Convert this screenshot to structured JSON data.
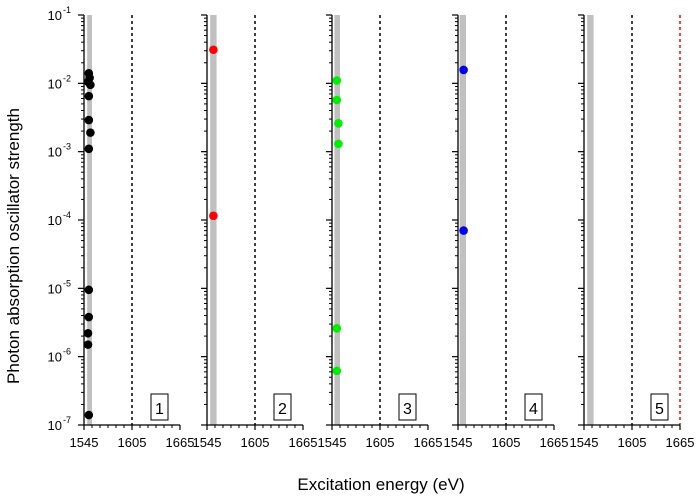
{
  "chart_data": {
    "type": "scatter",
    "xlabel": "Excitation energy (eV)",
    "ylabel": "Photon absorption oscillator strength",
    "y_scale": "log",
    "ylim": [
      1e-07,
      0.1
    ],
    "xlim": [
      1545,
      1665
    ],
    "x_ticks": [
      "1545",
      "1605",
      "1665"
    ],
    "y_ticks": [
      {
        "base": "10",
        "exp": "-1",
        "value": 0.1
      },
      {
        "base": "10",
        "exp": "-2",
        "value": 0.01
      },
      {
        "base": "10",
        "exp": "-3",
        "value": 0.001
      },
      {
        "base": "10",
        "exp": "-4",
        "value": 0.0001
      },
      {
        "base": "10",
        "exp": "-5",
        "value": 1e-05
      },
      {
        "base": "10",
        "exp": "-6",
        "value": 1e-06
      },
      {
        "base": "10",
        "exp": "-7",
        "value": 1e-07
      }
    ],
    "panels": [
      {
        "label": "1",
        "color": "#000000",
        "band": [
          1549,
          1555
        ],
        "dashed_lines": [
          {
            "x": 1605,
            "color": "#000000"
          }
        ],
        "points": [
          {
            "x": 1551,
            "y": 0.014
          },
          {
            "x": 1552,
            "y": 0.012
          },
          {
            "x": 1550,
            "y": 0.0105
          },
          {
            "x": 1553,
            "y": 0.0095
          },
          {
            "x": 1551,
            "y": 0.0065
          },
          {
            "x": 1551,
            "y": 0.0029
          },
          {
            "x": 1553,
            "y": 0.0019
          },
          {
            "x": 1551,
            "y": 0.0011
          },
          {
            "x": 1551,
            "y": 9.5e-06
          },
          {
            "x": 1551,
            "y": 3.8e-06
          },
          {
            "x": 1550,
            "y": 2.2e-06
          },
          {
            "x": 1550,
            "y": 1.5e-06
          },
          {
            "x": 1551,
            "y": 1.4e-07
          }
        ]
      },
      {
        "label": "2",
        "color": "#ff0000",
        "band": [
          1549,
          1557
        ],
        "dashed_lines": [
          {
            "x": 1605,
            "color": "#000000"
          }
        ],
        "points": [
          {
            "x": 1553,
            "y": 0.031
          },
          {
            "x": 1553,
            "y": 0.000115
          }
        ]
      },
      {
        "label": "3",
        "color": "#00ee00",
        "band": [
          1548,
          1555
        ],
        "dashed_lines": [
          {
            "x": 1605,
            "color": "#000000"
          }
        ],
        "points": [
          {
            "x": 1551,
            "y": 0.011
          },
          {
            "x": 1551,
            "y": 0.0057
          },
          {
            "x": 1553,
            "y": 0.0026
          },
          {
            "x": 1553,
            "y": 0.0013
          },
          {
            "x": 1551,
            "y": 2.6e-06
          },
          {
            "x": 1551,
            "y": 6.2e-07
          }
        ]
      },
      {
        "label": "4",
        "color": "#0000ee",
        "band": [
          1547,
          1555
        ],
        "dashed_lines": [
          {
            "x": 1605,
            "color": "#000000"
          }
        ],
        "points": [
          {
            "x": 1552,
            "y": 0.0157
          },
          {
            "x": 1552,
            "y": 7e-05
          }
        ]
      },
      {
        "label": "5",
        "color": "#000000",
        "band": [
          1549,
          1557
        ],
        "dashed_lines": [
          {
            "x": 1605,
            "color": "#000000"
          },
          {
            "x": 1665,
            "color": "#ff0000"
          }
        ],
        "points": []
      }
    ]
  }
}
